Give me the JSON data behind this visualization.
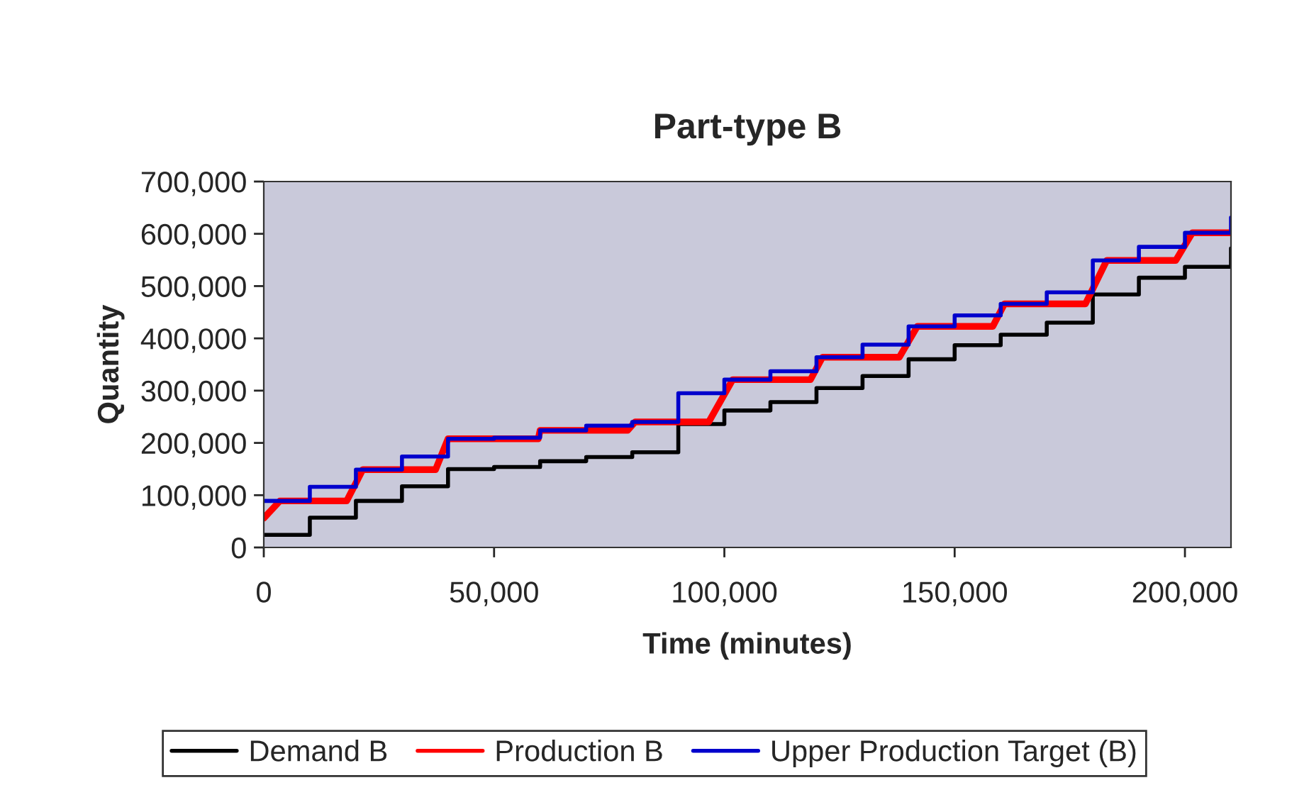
{
  "chart_data": {
    "type": "step",
    "title": "Part-type B",
    "xlabel": "Time (minutes)",
    "ylabel": "Quantity",
    "xlim": [
      0,
      210000
    ],
    "xticks": [
      0,
      {
        "value": 50000,
        "label": "50,000"
      },
      {
        "value": 100000,
        "label": "100,000"
      },
      {
        "value": 150000,
        "label": "150,000"
      },
      {
        "value": 200000,
        "label": "200,000"
      }
    ],
    "ylim": [
      0,
      700000
    ],
    "yticks": [
      0,
      {
        "value": 100000,
        "label": "100,000"
      },
      {
        "value": 200000,
        "label": "200,000"
      },
      {
        "value": 300000,
        "label": "300,000"
      },
      {
        "value": 400000,
        "label": "400,000"
      },
      {
        "value": 500000,
        "label": "500,000"
      },
      {
        "value": 600000,
        "label": "600,000"
      },
      {
        "value": 700000,
        "label": "700,000"
      }
    ],
    "grid": false,
    "legend": "bottom",
    "marker": "none",
    "line_style": "solid",
    "series": [
      {
        "name": "Demand B",
        "color": "#000000",
        "x": [
          0,
          10000,
          20000,
          30000,
          40000,
          50000,
          60000,
          70000,
          80000,
          90000,
          100000,
          110000,
          120000,
          130000,
          140000,
          150000,
          160000,
          170000,
          180000,
          190000,
          200000,
          210000
        ],
        "values": [
          24000,
          57000,
          89000,
          117000,
          150000,
          154000,
          165000,
          173000,
          182000,
          236000,
          262000,
          278000,
          305000,
          328000,
          360000,
          387000,
          407000,
          430000,
          484000,
          516000,
          537000,
          572000
        ]
      },
      {
        "name": "Production B",
        "color": "#ff0000",
        "type": "line",
        "x": [
          0,
          3500,
          18000,
          21500,
          37300,
          40000,
          59600,
          60000,
          79000,
          80600,
          96600,
          101800,
          118700,
          121300,
          138000,
          141900,
          158300,
          160800,
          178400,
          183000,
          198000,
          201600,
          210000
        ],
        "values": [
          56000,
          89000,
          89000,
          149000,
          149000,
          208000,
          208000,
          224000,
          224000,
          240000,
          240000,
          321000,
          321000,
          364000,
          364000,
          423000,
          423000,
          466000,
          466000,
          549000,
          549000,
          602000,
          602000
        ]
      },
      {
        "name": "Upper Production Target (B)",
        "color": "#0000cc",
        "x": [
          0,
          10000,
          20000,
          30000,
          40000,
          50000,
          60000,
          70000,
          80000,
          90000,
          100000,
          110000,
          120000,
          130000,
          140000,
          150000,
          160000,
          170000,
          180000,
          190000,
          200000,
          210000
        ],
        "values": [
          89000,
          116000,
          149000,
          174000,
          208000,
          210000,
          224000,
          233000,
          240000,
          295000,
          321000,
          337000,
          364000,
          388000,
          423000,
          444000,
          466000,
          488000,
          549000,
          575000,
          602000,
          631000
        ]
      }
    ]
  }
}
